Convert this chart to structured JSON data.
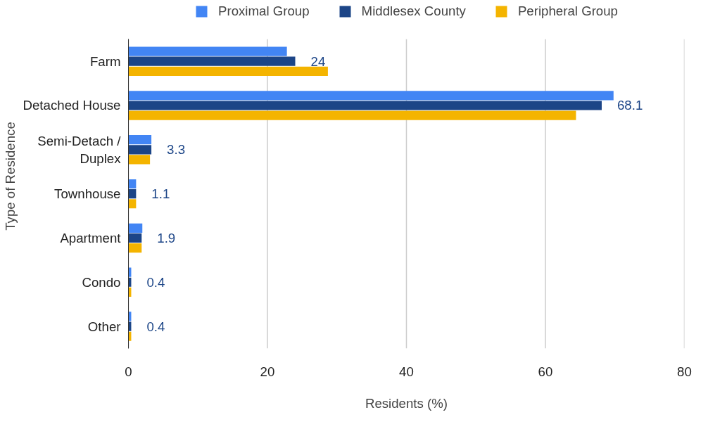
{
  "chart_data": {
    "type": "bar",
    "orientation": "horizontal",
    "categories": [
      "Farm",
      "Detached House",
      "Semi-Detach /\nDuplex",
      "Townhouse",
      "Apartment",
      "Condo",
      "Other"
    ],
    "series": [
      {
        "name": "Proximal Group",
        "color": "#4285f4",
        "values": [
          22.8,
          69.8,
          3.3,
          1.1,
          2.0,
          0.4,
          0.4
        ]
      },
      {
        "name": "Middlesex County",
        "color": "#1c4587",
        "values": [
          24,
          68.1,
          3.3,
          1.1,
          1.9,
          0.4,
          0.4
        ],
        "value_labels": [
          "24",
          "68.1",
          "3.3",
          "1.1",
          "1.9",
          "0.4",
          "0.4"
        ]
      },
      {
        "name": "Peripheral Group",
        "color": "#f4b400",
        "values": [
          28.7,
          64.4,
          3.1,
          1.1,
          1.9,
          0.4,
          0.4
        ]
      }
    ],
    "xlim": [
      0,
      80
    ],
    "xticks": [
      0,
      20,
      40,
      60,
      80
    ],
    "grid": "x",
    "legend": "top",
    "xlabel": "Residents (%)",
    "ylabel": "Type of Residence"
  }
}
